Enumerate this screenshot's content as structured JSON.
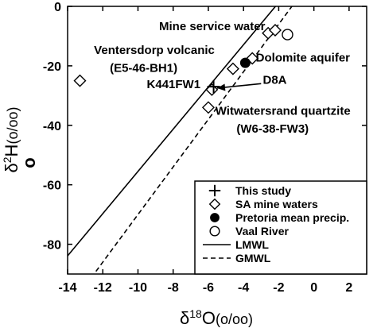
{
  "chart_data": {
    "type": "scatter",
    "title": "",
    "xlabel": "δ18O(o/oo)",
    "ylabel": "δ2H(o/oo)",
    "xlabel_parts": {
      "delta": "δ",
      "sup": "18",
      "base": "O",
      "unit": "(o/oo)"
    },
    "ylabel_parts": {
      "delta": "δ",
      "sup": "2",
      "base": "H",
      "unit": "(o/oo)"
    },
    "ylabel_extra": "o",
    "xlim": [
      -14,
      3
    ],
    "ylim": [
      -90,
      0
    ],
    "xticks": [
      -14,
      -12,
      -10,
      -8,
      -6,
      -4,
      -2,
      0,
      2
    ],
    "yticks": [
      0,
      -20,
      -40,
      -60,
      -80
    ],
    "xtick_labels": [
      "-14",
      "-12",
      "-10",
      "-8",
      "-6",
      "-4",
      "-2",
      "0",
      "2"
    ],
    "ytick_labels": [
      "0",
      "-20",
      "-40",
      "-60",
      "-80"
    ],
    "series": [
      {
        "name": "This study",
        "marker": "plus",
        "points": [
          {
            "x": -5.7,
            "y": -27
          }
        ]
      },
      {
        "name": "SA mine waters",
        "marker": "diamond",
        "points": [
          {
            "x": -13.3,
            "y": -25
          },
          {
            "x": -6.0,
            "y": -34
          },
          {
            "x": -5.8,
            "y": -28
          },
          {
            "x": -4.6,
            "y": -21
          },
          {
            "x": -3.5,
            "y": -17.5
          },
          {
            "x": -2.6,
            "y": -9
          },
          {
            "x": -2.2,
            "y": -8
          }
        ]
      },
      {
        "name": "Pretoria mean precip.",
        "marker": "filled-circle",
        "points": [
          {
            "x": -3.9,
            "y": -19
          }
        ]
      },
      {
        "name": "Vaal River",
        "marker": "open-circle",
        "points": [
          {
            "x": -1.5,
            "y": -9.5
          }
        ]
      }
    ],
    "lines": [
      {
        "name": "LMWL",
        "style": "solid",
        "slope": 7.1,
        "intercept": 15.5
      },
      {
        "name": "GMWL",
        "style": "dashed",
        "slope": 8.0,
        "intercept": 10.0
      }
    ],
    "annotations": [
      {
        "text": "Mine service water",
        "x": -8.8,
        "y": -8
      },
      {
        "text": "Dolomite aquifer",
        "x": -3.3,
        "y": -18.5
      },
      {
        "text": "Ventersdorp volcanic",
        "x": -12.5,
        "y": -16
      },
      {
        "text": "(E5-46-BH1)",
        "x": -11.6,
        "y": -22
      },
      {
        "text": "K441FW1",
        "x": -9.5,
        "y": -27.5
      },
      {
        "text": "D8A",
        "x": -2.9,
        "y": -26
      },
      {
        "text": "Witwatersrand quartzite",
        "x": -5.6,
        "y": -36.5
      },
      {
        "text": "(W6-38-FW3)",
        "x": -4.4,
        "y": -42.5
      }
    ],
    "arrows": [
      {
        "from": {
          "x": -3.0,
          "y": -26
        },
        "to": {
          "x": -5.5,
          "y": -27.5
        }
      }
    ],
    "legend_position": "bottom-right",
    "grid": false
  }
}
